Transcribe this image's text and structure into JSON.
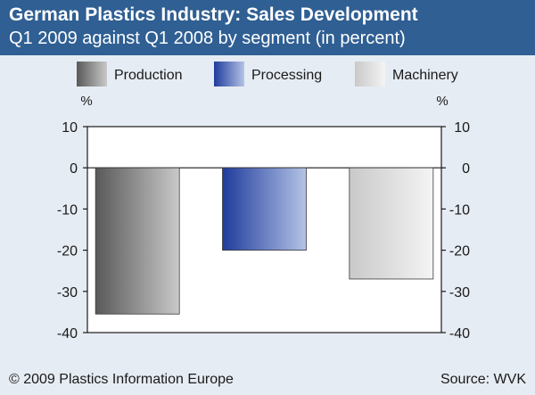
{
  "header": {
    "title": "German Plastics Industry: Sales Development",
    "subtitle": "Q1 2009 against Q1 2008 by segment (in percent)"
  },
  "footer": {
    "copyright": "© 2009 Plastics Information Europe",
    "source": "Source: WVK"
  },
  "chart_data": {
    "type": "bar",
    "categories": [
      "Production",
      "Processing",
      "Machinery"
    ],
    "values": [
      -35.5,
      -20,
      -27
    ],
    "ylabel_left": "%",
    "ylabel_right": "%",
    "ylim": [
      -40,
      10
    ],
    "yticks": [
      10,
      0,
      -10,
      -20,
      -30,
      -40
    ],
    "legend_position": "top",
    "grid": false,
    "colors": {
      "Production": [
        "#595959",
        "#c9c9c9"
      ],
      "Processing": [
        "#1f3c9c",
        "#b4c3e6"
      ],
      "Machinery": [
        "#c9c9c9",
        "#f4f4f4"
      ]
    }
  }
}
